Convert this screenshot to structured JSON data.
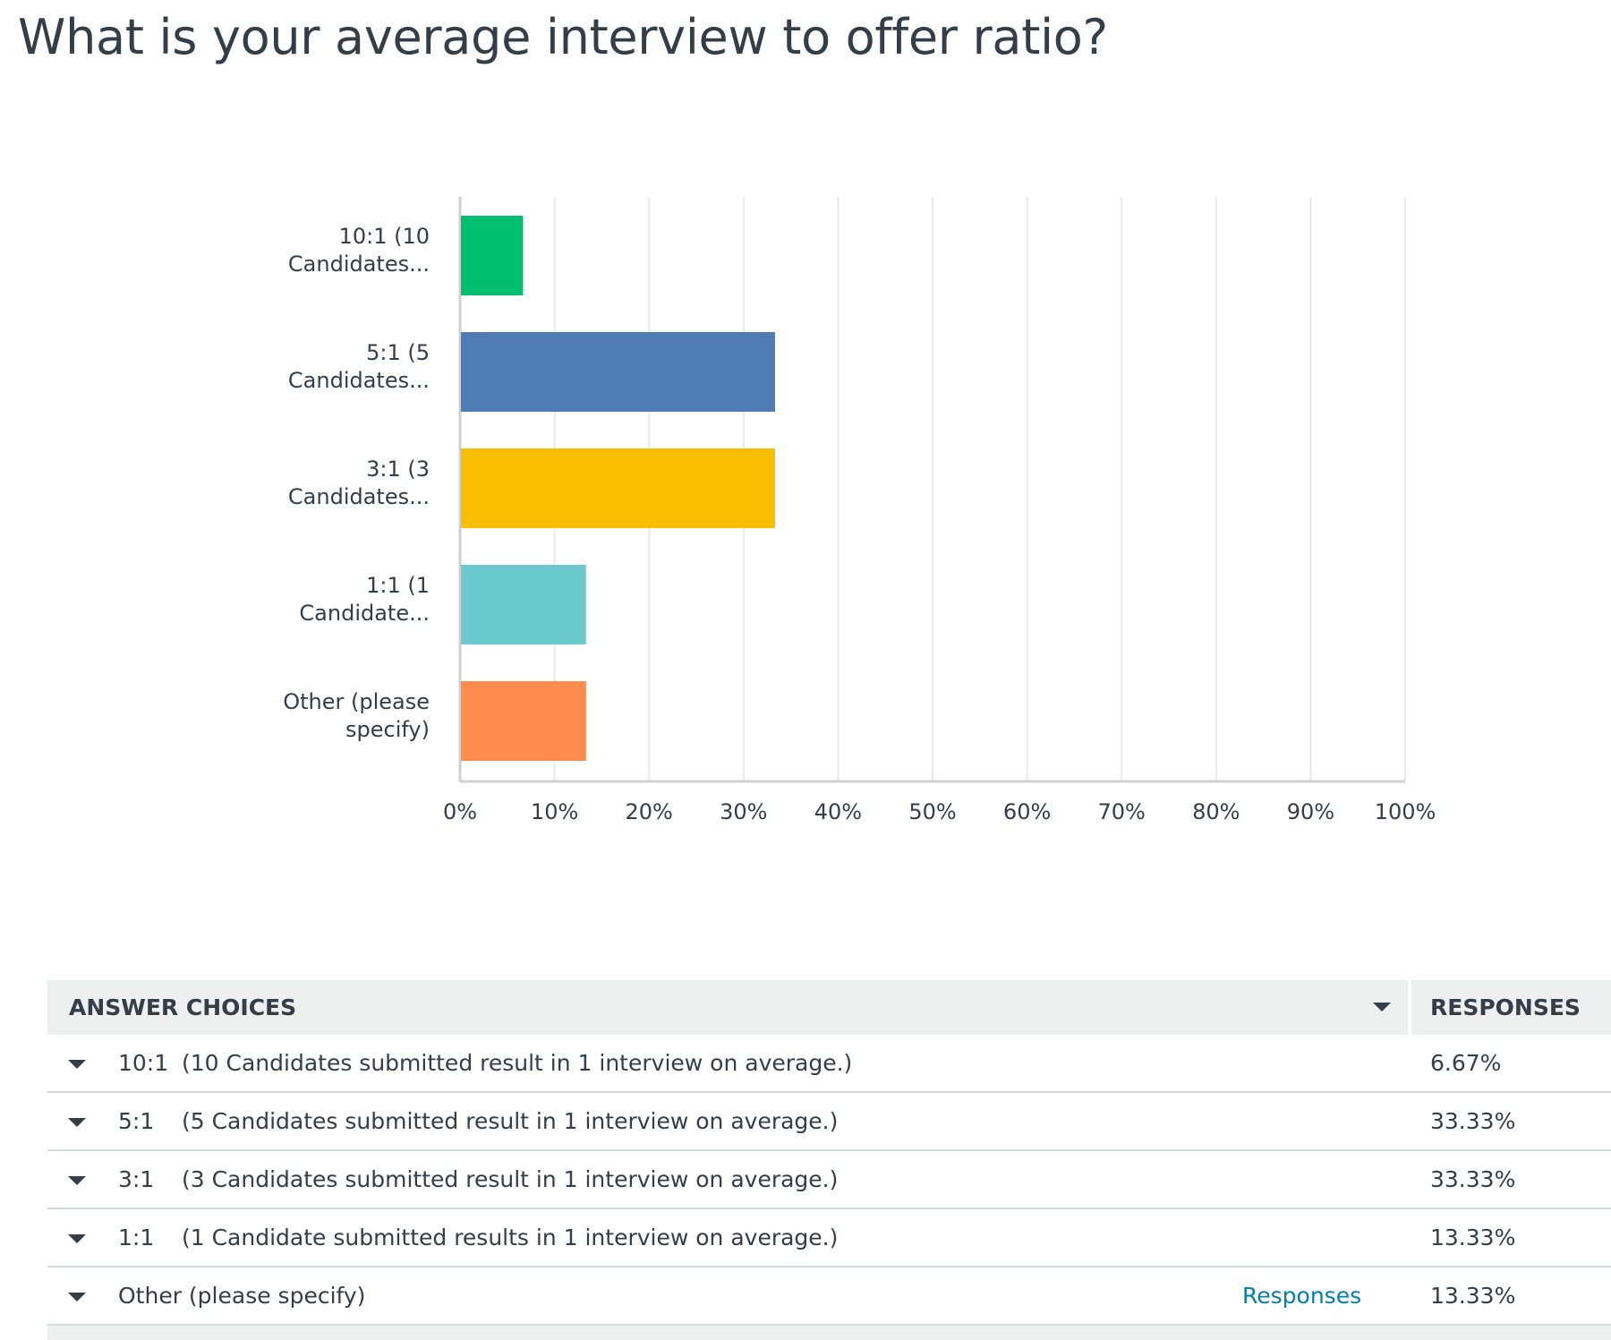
{
  "title": "What is your average interview to offer ratio?",
  "chart_data": {
    "type": "bar",
    "orientation": "horizontal",
    "categories": [
      [
        "10:1 (10",
        "Candidates..."
      ],
      [
        "5:1 (5",
        "Candidates..."
      ],
      [
        "3:1 (3",
        "Candidates..."
      ],
      [
        "1:1 (1",
        "Candidate..."
      ],
      [
        "Other (please",
        "specify)"
      ]
    ],
    "values": [
      6.67,
      33.33,
      33.33,
      13.33,
      13.33
    ],
    "colors": [
      "#00bf6f",
      "#507cb6",
      "#f9be00",
      "#6bc8cd",
      "#ff8b4f"
    ],
    "xlim": [
      0,
      100
    ],
    "ticks": [
      "0%",
      "10%",
      "20%",
      "30%",
      "40%",
      "50%",
      "60%",
      "70%",
      "80%",
      "90%",
      "100%"
    ],
    "grid": true
  },
  "table": {
    "header": {
      "choices": "ANSWER CHOICES",
      "responses": "RESPONSES"
    },
    "rows": [
      {
        "ratio": "10:1",
        "desc": "(10 Candidates submitted result in 1 interview on average.)",
        "pct": "6.67%"
      },
      {
        "ratio": "5:1",
        "desc": "(5 Candidates submitted result in 1 interview on average.)",
        "pct": "33.33%"
      },
      {
        "ratio": "3:1",
        "desc": "(3 Candidates submitted result in 1 interview on average.)",
        "pct": "33.33%"
      },
      {
        "ratio": "1:1",
        "desc": "(1 Candidate submitted results in 1 interview on average.)",
        "pct": "13.33%"
      }
    ],
    "other": {
      "label": "Other (please specify)",
      "link": "Responses",
      "pct": "13.33%"
    }
  }
}
